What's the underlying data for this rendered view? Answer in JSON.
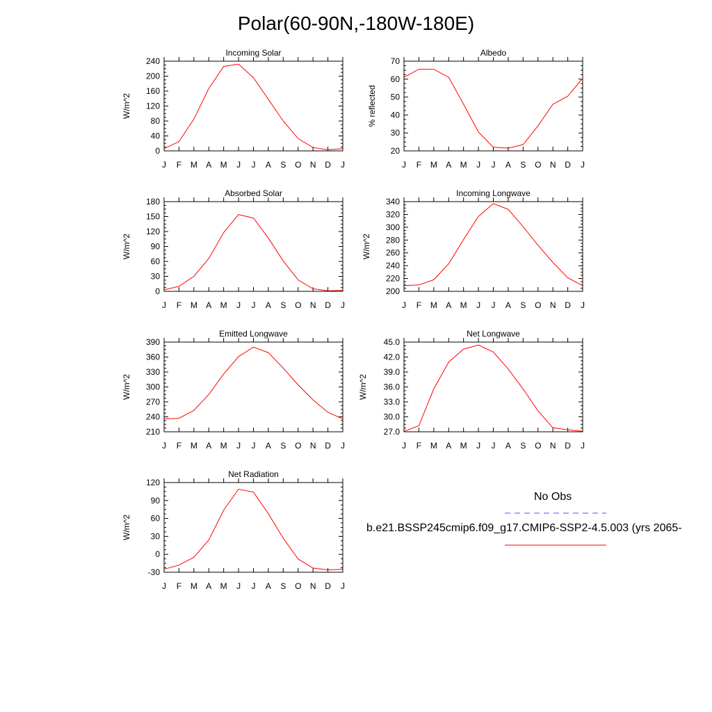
{
  "title": "Polar(60-90N,-180W-180E)",
  "colors": {
    "model": "#ff0000",
    "obs": "#4d4dff",
    "axis": "#000000"
  },
  "month_labels": [
    "J",
    "F",
    "M",
    "A",
    "M",
    "J",
    "J",
    "A",
    "S",
    "O",
    "N",
    "D",
    "J"
  ],
  "legend": {
    "obs_label": "No Obs",
    "model_label": "b.e21.BSSP245cmip6.f09_g17.CMIP6-SSP2-4.5.003 (yrs 2065-"
  },
  "chart_data": [
    {
      "type": "line",
      "title": "Incoming Solar",
      "ylabel": "W/m^2",
      "ylim": [
        0,
        240
      ],
      "yticks": [
        "0",
        "40",
        "80",
        "120",
        "160",
        "200",
        "240"
      ],
      "xlabel": "",
      "series": [
        {
          "name": "model",
          "values": [
            6,
            25,
            85,
            167,
            226,
            232,
            196,
            138,
            80,
            33,
            9,
            3,
            6
          ]
        }
      ]
    },
    {
      "type": "line",
      "title": "Albedo",
      "ylabel": "% reflected",
      "ylim": [
        20,
        70
      ],
      "yticks": [
        "20",
        "30",
        "40",
        "50",
        "60",
        "70"
      ],
      "xlabel": "",
      "series": [
        {
          "name": "model",
          "values": [
            61,
            65.5,
            65.5,
            61,
            46,
            30.5,
            22,
            21.5,
            23.5,
            34,
            46,
            50.5,
            60.5
          ]
        }
      ]
    },
    {
      "type": "line",
      "title": "Absorbed Solar",
      "ylabel": "W/m^2",
      "ylim": [
        0,
        180
      ],
      "yticks": [
        "0",
        "30",
        "60",
        "90",
        "120",
        "150",
        "180"
      ],
      "xlabel": "",
      "series": [
        {
          "name": "model",
          "values": [
            3,
            10,
            30,
            66,
            118,
            154,
            147,
            107,
            61,
            23,
            5,
            1,
            2
          ]
        }
      ]
    },
    {
      "type": "line",
      "title": "Incoming Longwave",
      "ylabel": "W/m^2",
      "ylim": [
        200,
        340
      ],
      "yticks": [
        "200",
        "220",
        "240",
        "260",
        "280",
        "300",
        "320",
        "340"
      ],
      "xlabel": "",
      "series": [
        {
          "name": "model",
          "values": [
            209,
            210,
            218,
            243,
            281,
            317,
            337,
            328,
            301,
            272,
            245,
            221,
            209
          ]
        }
      ]
    },
    {
      "type": "line",
      "title": "Emitted Longwave",
      "ylabel": "W/m^2",
      "ylim": [
        210,
        390
      ],
      "yticks": [
        "210",
        "240",
        "270",
        "300",
        "330",
        "360",
        "390"
      ],
      "xlabel": "",
      "series": [
        {
          "name": "model",
          "values": [
            236,
            237,
            253,
            285,
            326,
            361,
            380,
            369,
            338,
            304,
            274,
            249,
            236
          ]
        }
      ]
    },
    {
      "type": "line",
      "title": "Net Longwave",
      "ylabel": "W/m^2",
      "ylim": [
        27,
        45
      ],
      "yticks": [
        "27.0",
        "30.0",
        "33.0",
        "36.0",
        "39.0",
        "42.0",
        "45.0"
      ],
      "xlabel": "",
      "series": [
        {
          "name": "model",
          "values": [
            27.1,
            28.2,
            35.6,
            41.0,
            43.6,
            44.4,
            43.0,
            39.6,
            35.6,
            31.2,
            27.8,
            27.4,
            27.1
          ]
        }
      ]
    },
    {
      "type": "line",
      "title": "Net Radiation",
      "ylabel": "W/m^2",
      "ylim": [
        -30,
        120
      ],
      "yticks": [
        "-30",
        "0",
        "30",
        "60",
        "90",
        "120"
      ],
      "xlabel": "",
      "series": [
        {
          "name": "model",
          "values": [
            -25,
            -18,
            -5,
            24,
            74,
            109,
            104,
            68,
            27,
            -8,
            -23,
            -26,
            -25
          ]
        }
      ]
    }
  ]
}
